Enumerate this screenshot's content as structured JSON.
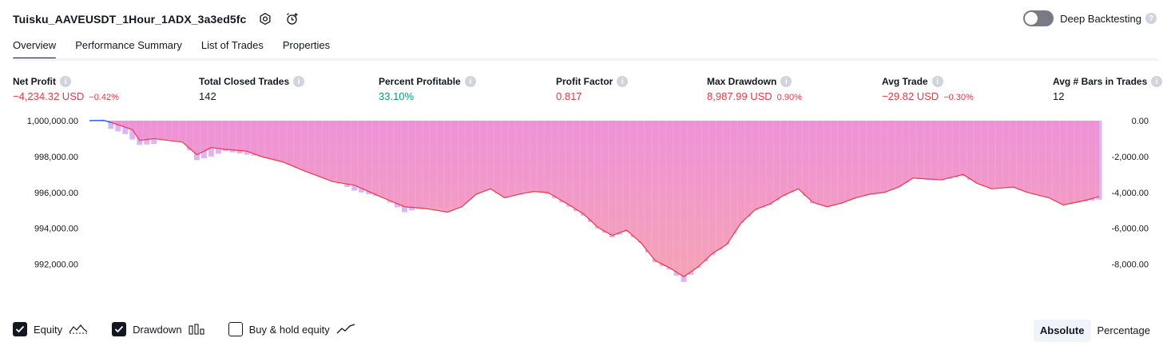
{
  "header": {
    "title": "Tuisku_AAVEUSDT_1Hour_1ADX_3a3ed5fc",
    "settings_icon": "gear-icon",
    "alert_icon": "add-alert-icon"
  },
  "deep_backtesting": {
    "label": "Deep Backtesting",
    "enabled": false,
    "help": "?"
  },
  "tabs": [
    {
      "label": "Overview",
      "active": true
    },
    {
      "label": "Performance Summary",
      "active": false
    },
    {
      "label": "List of Trades",
      "active": false
    },
    {
      "label": "Properties",
      "active": false
    }
  ],
  "metrics": [
    {
      "label": "Net Profit",
      "value": "−4,234.32 USD",
      "pct": "−0.42%",
      "tone": "neg",
      "info": "i"
    },
    {
      "label": "Total Closed Trades",
      "value": "142",
      "pct": "",
      "tone": "neu",
      "info": "i"
    },
    {
      "label": "Percent Profitable",
      "value": "33.10%",
      "pct": "",
      "tone": "pos",
      "info": "i"
    },
    {
      "label": "Profit Factor",
      "value": "0.817",
      "pct": "",
      "tone": "neg",
      "info": "i"
    },
    {
      "label": "Max Drawdown",
      "value": "8,987.99 USD",
      "pct": "0.90%",
      "tone": "neg",
      "info": "i"
    },
    {
      "label": "Avg Trade",
      "value": "−29.82 USD",
      "pct": "−0.30%",
      "tone": "neg",
      "info": "i"
    },
    {
      "label": "Avg # Bars in Trades",
      "value": "12",
      "pct": "",
      "tone": "neu",
      "info": "i"
    }
  ],
  "chart_data": {
    "type": "area",
    "x_ticks": [
      "1",
      "11",
      "21",
      "31",
      "41",
      "51",
      "61",
      "71",
      "81",
      "91",
      "101",
      "111",
      "121",
      "131",
      "141"
    ],
    "x_range": [
      1,
      142
    ],
    "left_axis": {
      "ticks": [
        "1,000,000.00",
        "998,000.00",
        "996,000.00",
        "994,000.00",
        "992,000.00"
      ],
      "range": [
        991000,
        1000000
      ]
    },
    "right_axis": {
      "ticks": [
        "0.00",
        "-2,000.00",
        "-4,000.00",
        "-6,000.00",
        "-8,000.00"
      ],
      "range": [
        -9000,
        0
      ]
    },
    "equity_anchors": [
      [
        1,
        1000000
      ],
      [
        3,
        1000020
      ],
      [
        4,
        999900
      ],
      [
        7,
        999500
      ],
      [
        8,
        998900
      ],
      [
        10,
        999000
      ],
      [
        11,
        998950
      ],
      [
        14,
        998800
      ],
      [
        16,
        998100
      ],
      [
        18,
        998500
      ],
      [
        20,
        998400
      ],
      [
        23,
        998300
      ],
      [
        25,
        998000
      ],
      [
        28,
        997700
      ],
      [
        31,
        997200
      ],
      [
        35,
        996600
      ],
      [
        38,
        996400
      ],
      [
        42,
        995700
      ],
      [
        45,
        995200
      ],
      [
        48,
        995100
      ],
      [
        51,
        994900
      ],
      [
        53,
        995200
      ],
      [
        55,
        995900
      ],
      [
        57,
        996200
      ],
      [
        59,
        995700
      ],
      [
        61,
        995900
      ],
      [
        63,
        996050
      ],
      [
        65,
        996000
      ],
      [
        68,
        995300
      ],
      [
        70,
        994800
      ],
      [
        72,
        994050
      ],
      [
        74,
        993600
      ],
      [
        76,
        993900
      ],
      [
        78,
        993200
      ],
      [
        80,
        992200
      ],
      [
        82,
        991800
      ],
      [
        84,
        991300
      ],
      [
        86,
        991850
      ],
      [
        88,
        992600
      ],
      [
        90,
        993100
      ],
      [
        92,
        994300
      ],
      [
        94,
        995050
      ],
      [
        96,
        995350
      ],
      [
        98,
        995850
      ],
      [
        100,
        996200
      ],
      [
        102,
        995450
      ],
      [
        104,
        995200
      ],
      [
        106,
        995400
      ],
      [
        108,
        995700
      ],
      [
        110,
        995900
      ],
      [
        112,
        996000
      ],
      [
        114,
        996300
      ],
      [
        116,
        996800
      ],
      [
        118,
        996750
      ],
      [
        120,
        996700
      ],
      [
        123,
        997000
      ],
      [
        125,
        996500
      ],
      [
        127,
        996200
      ],
      [
        130,
        996300
      ],
      [
        132,
        996000
      ],
      [
        135,
        995700
      ],
      [
        137,
        995300
      ],
      [
        140,
        995550
      ],
      [
        142,
        995765.68
      ]
    ],
    "drawdown_anchors": [
      [
        1,
        0
      ],
      [
        3,
        -50
      ],
      [
        4,
        -450
      ],
      [
        6,
        -750
      ],
      [
        8,
        -1350
      ],
      [
        10,
        -1300
      ],
      [
        11,
        -1000
      ],
      [
        14,
        -1100
      ],
      [
        16,
        -2200
      ],
      [
        18,
        -2000
      ],
      [
        20,
        -1700
      ],
      [
        23,
        -1900
      ],
      [
        25,
        -2000
      ],
      [
        28,
        -2300
      ],
      [
        31,
        -2800
      ],
      [
        35,
        -3300
      ],
      [
        38,
        -3900
      ],
      [
        42,
        -4300
      ],
      [
        45,
        -5100
      ],
      [
        48,
        -4800
      ],
      [
        51,
        -4900
      ],
      [
        53,
        -4700
      ],
      [
        55,
        -4100
      ],
      [
        57,
        -3800
      ],
      [
        59,
        -4300
      ],
      [
        61,
        -4000
      ],
      [
        63,
        -3800
      ],
      [
        65,
        -4100
      ],
      [
        68,
        -4800
      ],
      [
        70,
        -5300
      ],
      [
        72,
        -6000
      ],
      [
        74,
        -6500
      ],
      [
        76,
        -6200
      ],
      [
        78,
        -6800
      ],
      [
        80,
        -7900
      ],
      [
        82,
        -8300
      ],
      [
        84,
        -8990
      ],
      [
        86,
        -8200
      ],
      [
        88,
        -7500
      ],
      [
        90,
        -6900
      ],
      [
        92,
        -5700
      ],
      [
        94,
        -5000
      ],
      [
        96,
        -4700
      ],
      [
        98,
        -4200
      ],
      [
        100,
        -3800
      ],
      [
        102,
        -4600
      ],
      [
        104,
        -4800
      ],
      [
        106,
        -4600
      ],
      [
        108,
        -4300
      ],
      [
        110,
        -4100
      ],
      [
        112,
        -4000
      ],
      [
        114,
        -3700
      ],
      [
        116,
        -3200
      ],
      [
        118,
        -3300
      ],
      [
        120,
        -3300
      ],
      [
        123,
        -3100
      ],
      [
        125,
        -3500
      ],
      [
        127,
        -3800
      ],
      [
        130,
        -3700
      ],
      [
        132,
        -4000
      ],
      [
        135,
        -4300
      ],
      [
        137,
        -4700
      ],
      [
        140,
        -4500
      ],
      [
        142,
        -4400
      ]
    ],
    "colors": {
      "equity_line": "#f23645",
      "equity_area_top": "#ee8fd6",
      "equity_area_bottom": "#f7a1b1",
      "drawdown_bar": "#d7a8f5",
      "start_line": "#2962ff"
    }
  },
  "legend": {
    "items": [
      {
        "label": "Equity",
        "checked": true,
        "icon": "equity-line-icon"
      },
      {
        "label": "Drawdown",
        "checked": true,
        "icon": "drawdown-bars-icon"
      },
      {
        "label": "Buy & hold equity",
        "checked": false,
        "icon": "buy-hold-line-icon"
      }
    ]
  },
  "mode": {
    "options": [
      "Absolute",
      "Percentage"
    ],
    "selected": "Absolute"
  }
}
